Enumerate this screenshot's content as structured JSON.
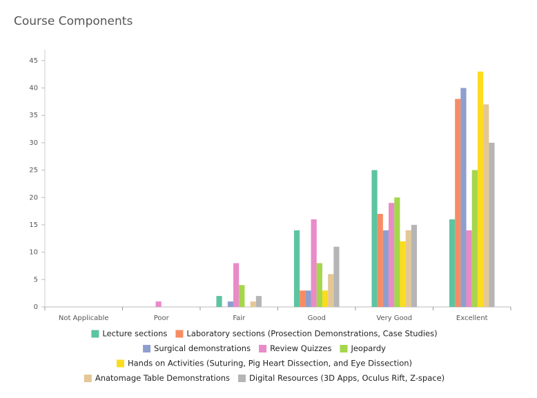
{
  "chart_data": {
    "type": "bar",
    "title": "Course Components",
    "categories": [
      "Not Applicable",
      "Poor",
      "Fair",
      "Good",
      "Very Good",
      "Excellent"
    ],
    "series": [
      {
        "name": "Lecture sections",
        "color": "#5cc4a0",
        "values": [
          0,
          0,
          2,
          14,
          25,
          16
        ]
      },
      {
        "name": "Laboratory sections (Prosection Demonstrations, Case Studies)",
        "color": "#f78c64",
        "values": [
          0,
          0,
          0,
          3,
          17,
          38
        ]
      },
      {
        "name": "Surgical demonstrations",
        "color": "#8e9fce",
        "values": [
          0,
          0,
          1,
          3,
          14,
          40
        ]
      },
      {
        "name": "Review Quizzes",
        "color": "#e98bc6",
        "values": [
          0,
          1,
          8,
          16,
          19,
          14
        ]
      },
      {
        "name": "Jeopardy",
        "color": "#a5d64c",
        "values": [
          0,
          0,
          4,
          8,
          20,
          25
        ]
      },
      {
        "name": "Hands on Activities (Suturing, Pig Heart Dissection, and Eye Dissection)",
        "color": "#fbdc1f",
        "values": [
          0,
          0,
          0,
          3,
          12,
          43
        ]
      },
      {
        "name": "Anatomage Table Demonstrations",
        "color": "#e3c796",
        "values": [
          0,
          0,
          1,
          6,
          14,
          37
        ]
      },
      {
        "name": "Digital Resources (3D Apps, Oculus Rift, Z-space)",
        "color": "#b5b5b5",
        "values": [
          0,
          0,
          2,
          11,
          15,
          30
        ]
      }
    ],
    "ylim": [
      0,
      47
    ],
    "yticks": [
      0,
      5,
      10,
      15,
      20,
      25,
      30,
      35,
      40,
      45
    ],
    "grid": false
  }
}
